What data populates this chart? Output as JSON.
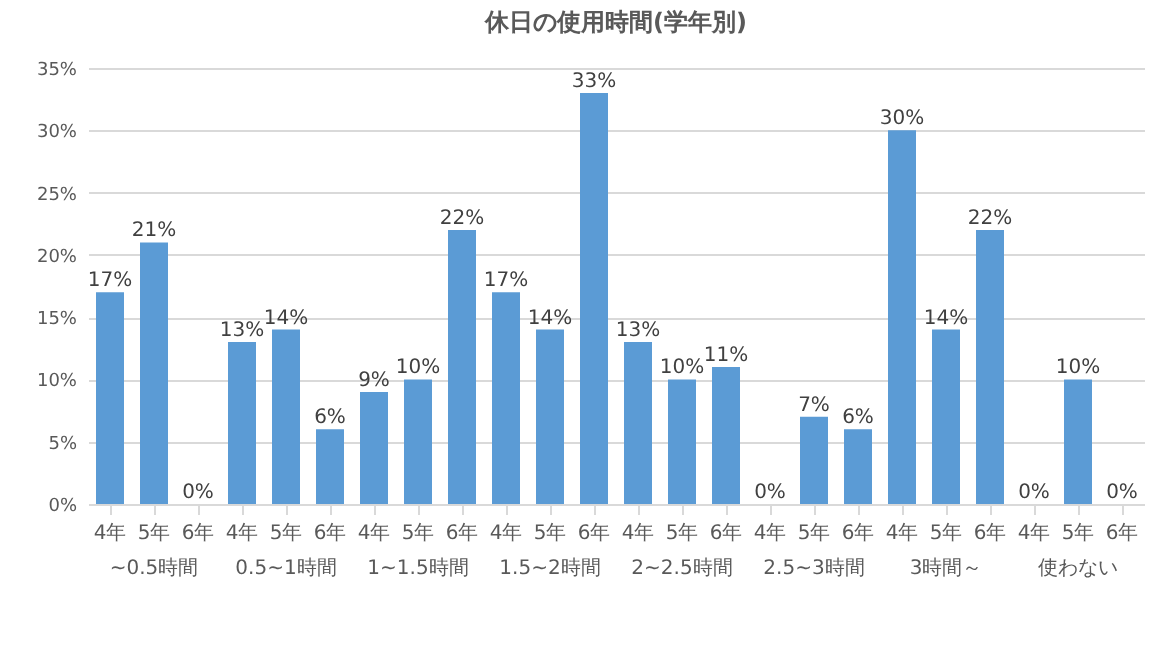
{
  "chart_data": {
    "type": "bar",
    "title": "休日の使用時間(学年別)",
    "categories": [
      "4年",
      "5年",
      "6年",
      "4年",
      "5年",
      "6年",
      "4年",
      "5年",
      "6年",
      "4年",
      "5年",
      "6年",
      "4年",
      "5年",
      "6年",
      "4年",
      "5年",
      "6年",
      "4年",
      "5年",
      "6年",
      "4年",
      "5年",
      "6年"
    ],
    "values": [
      17,
      21,
      0,
      13,
      14,
      6,
      9,
      10,
      22,
      17,
      14,
      33,
      13,
      10,
      11,
      0,
      7,
      6,
      30,
      14,
      22,
      0,
      10,
      0
    ],
    "value_labels": [
      "17%",
      "21%",
      "0%",
      "13%",
      "14%",
      "6%",
      "9%",
      "10%",
      "22%",
      "17%",
      "14%",
      "33%",
      "13%",
      "10%",
      "11%",
      "0%",
      "7%",
      "6%",
      "30%",
      "14%",
      "22%",
      "0%",
      "10%",
      "0%"
    ],
    "color": "#5b9bd5",
    "ylim": [
      0,
      35
    ],
    "yticks": [
      {
        "value": 0,
        "label": "0%"
      },
      {
        "value": 5,
        "label": "5%"
      },
      {
        "value": 10,
        "label": "10%"
      },
      {
        "value": 15,
        "label": "15%"
      },
      {
        "value": 20,
        "label": "20%"
      },
      {
        "value": 25,
        "label": "25%"
      },
      {
        "value": 30,
        "label": "30%"
      },
      {
        "value": 35,
        "label": "35%"
      }
    ],
    "grid": "y",
    "annotations": [
      "~0.5時間",
      "0.5~1時間",
      "1~1.5時間",
      "1.5~2時間",
      "2~2.5時間",
      "2.5~3時間",
      "3時間～",
      "使わない"
    ]
  }
}
